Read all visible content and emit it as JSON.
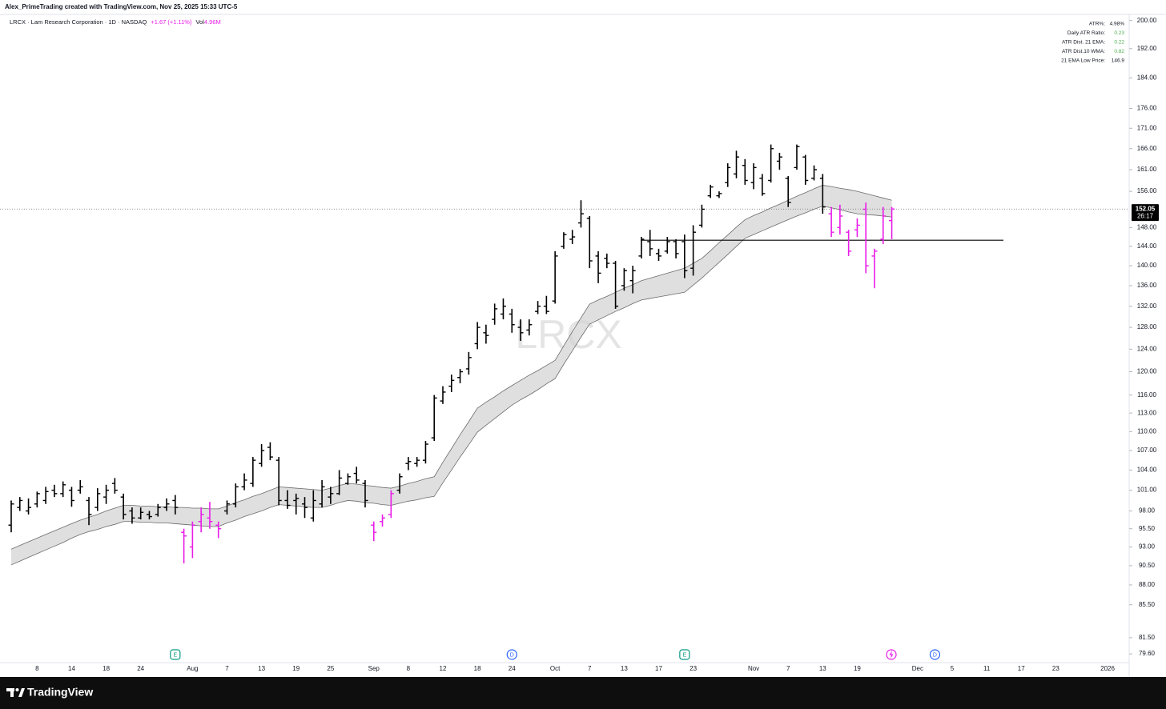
{
  "header": {
    "credit": "Alex_PrimeTrading created with TradingView.com, Nov 25, 2025 15:33 UTC-5"
  },
  "legend": {
    "symbol": "LRCX · Lam Research Corporation · 1D · NASDAQ",
    "change": "+1.67 (+1.11%)",
    "vol_label": "Vol",
    "vol_value": "4.96M"
  },
  "watermark": "LRCX",
  "stats_table": {
    "rows": [
      [
        "ATR%:",
        "4.98%"
      ],
      [
        "Daily ATR Ratio:",
        "0.23"
      ],
      [
        "ATR Dist. 21 EMA:",
        "0.22"
      ],
      [
        "ATR Dist.10 WMA:",
        "0.82"
      ],
      [
        "21 EMA Low Price:",
        "146.9"
      ]
    ]
  },
  "footer": {
    "brand": "TradingView"
  },
  "chart_data": {
    "type": "ohlc",
    "log_scale": true,
    "ylim": [
      78.6,
      201.8
    ],
    "yticks": [
      {
        "value": 200,
        "label": "200.00"
      },
      {
        "value": 192,
        "label": "192.00"
      },
      {
        "value": 184,
        "label": "184.00"
      },
      {
        "value": 176,
        "label": "176.00"
      },
      {
        "value": 171,
        "label": "171.00"
      },
      {
        "value": 166,
        "label": "166.00"
      },
      {
        "value": 161,
        "label": "161.00"
      },
      {
        "value": 156,
        "label": "156.00"
      },
      {
        "value": 148,
        "label": "148.00"
      },
      {
        "value": 144,
        "label": "144.00"
      },
      {
        "value": 140,
        "label": "140.00"
      },
      {
        "value": 136,
        "label": "136.00"
      },
      {
        "value": 132,
        "label": "132.00"
      },
      {
        "value": 128,
        "label": "128.00"
      },
      {
        "value": 124,
        "label": "124.00"
      },
      {
        "value": 120,
        "label": "120.00"
      },
      {
        "value": 116,
        "label": "116.00"
      },
      {
        "value": 113,
        "label": "113.00"
      },
      {
        "value": 110,
        "label": "110.00"
      },
      {
        "value": 107,
        "label": "107.00"
      },
      {
        "value": 104,
        "label": "104.00"
      },
      {
        "value": 101,
        "label": "101.00"
      },
      {
        "value": 98,
        "label": "98.00"
      },
      {
        "value": 95.5,
        "label": "95.50"
      },
      {
        "value": 93,
        "label": "93.00"
      },
      {
        "value": 90.5,
        "label": "90.50"
      },
      {
        "value": 88,
        "label": "88.00"
      },
      {
        "value": 85.5,
        "label": "85.50"
      },
      {
        "value": 81.5,
        "label": "81.50"
      },
      {
        "value": 79.6,
        "label": "79.60"
      }
    ],
    "categories": [
      null,
      null,
      null,
      "8",
      null,
      null,
      null,
      "14",
      null,
      null,
      null,
      "18",
      null,
      null,
      null,
      "24",
      null,
      null,
      null,
      null,
      null,
      "Aug",
      null,
      null,
      null,
      "7",
      null,
      null,
      null,
      "13",
      null,
      null,
      null,
      "19",
      null,
      null,
      null,
      "25",
      null,
      null,
      null,
      null,
      "Sep",
      null,
      null,
      null,
      "8",
      null,
      null,
      null,
      "12",
      null,
      null,
      null,
      "18",
      null,
      null,
      null,
      "24",
      null,
      null,
      null,
      null,
      "Oct",
      null,
      null,
      null,
      "7",
      null,
      null,
      null,
      "13",
      null,
      null,
      null,
      "17",
      null,
      null,
      null,
      "23",
      null,
      null,
      null,
      null,
      null,
      null,
      "Nov",
      null,
      null,
      null,
      "7",
      null,
      null,
      null,
      "13",
      null,
      null,
      null,
      "19",
      null,
      null,
      null,
      null,
      null,
      null,
      "Dec",
      null,
      null,
      null,
      "5",
      null,
      null,
      null,
      "11",
      null,
      null,
      null,
      "17",
      null,
      null,
      null,
      "23",
      null,
      null,
      null,
      null,
      null,
      "2026"
    ],
    "open": [
      96,
      98.5,
      98,
      99,
      99.5,
      101,
      100.5,
      101,
      101,
      99.5,
      98.5,
      100,
      102,
      100,
      98,
      97,
      97.5,
      97.5,
      98.5,
      99.5,
      95,
      93,
      96.5,
      97,
      96,
      98,
      99,
      101.5,
      102,
      105,
      107.5,
      105.5,
      99.5,
      99.5,
      99,
      97,
      99,
      100,
      100.5,
      102,
      103.5,
      102,
      96,
      96.5,
      97.5,
      101,
      105,
      105,
      105.5,
      109,
      115,
      117.5,
      119,
      120.5,
      125,
      127,
      129.5,
      130.5,
      130.5,
      128,
      127.5,
      131,
      132,
      133,
      144,
      145.5,
      149,
      150,
      142,
      141.5,
      140.5,
      136,
      137,
      142,
      145,
      142.5,
      143,
      145,
      145,
      139.5,
      148.5,
      155,
      155,
      158,
      160,
      162,
      158,
      159,
      158.5,
      163,
      159,
      161.5,
      164,
      159,
      159,
      151,
      148,
      147,
      147.5,
      152,
      142,
      145.5,
      149.5,
      null,
      null,
      null,
      null,
      null,
      null,
      null,
      null,
      null,
      null,
      null,
      null,
      null,
      null,
      null,
      null,
      null,
      null,
      null,
      null,
      null,
      null,
      null,
      null,
      null
    ],
    "high": [
      99.5,
      100,
      99.8,
      100.8,
      101.5,
      101.8,
      102.3,
      101.5,
      102.5,
      100,
      101.3,
      101.8,
      102.8,
      100.5,
      98.5,
      98.5,
      98,
      99,
      99.8,
      100.3,
      95.5,
      96.5,
      98.5,
      99.3,
      96.5,
      99.5,
      102,
      103.5,
      106,
      108,
      108.3,
      106,
      101,
      100.5,
      100,
      101,
      102.5,
      101.5,
      104,
      103.5,
      104.5,
      102.5,
      96.5,
      97.5,
      101,
      103.5,
      106,
      106,
      108.5,
      116,
      117.5,
      119.5,
      120.5,
      123.5,
      129,
      128.5,
      132.5,
      133.5,
      131.5,
      129.5,
      129.5,
      133,
      134,
      143,
      147,
      147.5,
      154,
      150.5,
      143,
      142.5,
      141,
      139.5,
      140,
      146,
      147.5,
      143.5,
      146,
      145.5,
      146.5,
      148.5,
      153,
      157.5,
      156,
      162.5,
      165.5,
      163.5,
      162.5,
      160,
      167,
      165,
      159.5,
      167,
      164.5,
      162,
      160,
      152.5,
      153,
      147.5,
      150,
      153.5,
      143.5,
      152.5,
      152.5,
      null,
      null,
      null,
      null,
      null,
      null,
      null,
      null,
      null,
      null,
      null,
      null,
      null,
      null,
      null,
      null,
      null,
      null,
      null,
      null,
      null,
      null,
      null,
      null,
      null
    ],
    "low": [
      95,
      98,
      97.5,
      98.5,
      99,
      100,
      100,
      98.6,
      100.5,
      96,
      98,
      99,
      100.5,
      96.8,
      96.2,
      96.8,
      96.8,
      97.2,
      98,
      97.5,
      90.8,
      91.5,
      95,
      95.5,
      94.2,
      97.5,
      98.5,
      101,
      101.5,
      104.5,
      105.5,
      98.8,
      98.3,
      97.5,
      97,
      96.5,
      98.5,
      99,
      100.3,
      101.8,
      102,
      98.5,
      93.8,
      95.8,
      97,
      100.5,
      104,
      104.5,
      105,
      108.5,
      114.5,
      116.5,
      118,
      119.5,
      124,
      125,
      128.5,
      129.5,
      127,
      125.5,
      126.5,
      130.5,
      130.5,
      132.5,
      143.5,
      144.5,
      148,
      139.5,
      136.5,
      139.5,
      131.5,
      135,
      134.5,
      141.5,
      142,
      141,
      142.5,
      141.5,
      137.5,
      138,
      148,
      154.5,
      154.5,
      157,
      159,
      157.5,
      156.5,
      155,
      158,
      161,
      152.5,
      161,
      157.5,
      158.5,
      151,
      146,
      146.5,
      142,
      146,
      138.5,
      135.5,
      144.5,
      145.5,
      null,
      null,
      null,
      null,
      null,
      null,
      null,
      null,
      null,
      null,
      null,
      null,
      null,
      null,
      null,
      null,
      null,
      null,
      null,
      null,
      null,
      null,
      null,
      null,
      null
    ],
    "close": [
      99,
      99.5,
      98.5,
      100.5,
      100.8,
      100.5,
      101.8,
      99.5,
      101.5,
      97.5,
      100.5,
      101,
      101,
      97.5,
      97,
      97.8,
      97.2,
      98.5,
      99,
      98.5,
      94.5,
      96,
      97.5,
      96.5,
      95.5,
      99,
      101.5,
      102.5,
      105.5,
      107,
      106,
      99.5,
      98.8,
      99.8,
      98.5,
      99.5,
      101.5,
      100.5,
      102.8,
      103,
      102.5,
      99.5,
      95,
      97,
      100.5,
      103,
      105.3,
      105.5,
      108,
      115.5,
      116.5,
      118.5,
      120,
      122.5,
      128,
      126.5,
      131.5,
      132,
      128.5,
      127,
      128.5,
      132,
      131,
      142,
      146.5,
      146,
      151,
      141,
      138.5,
      140.5,
      132,
      139,
      139,
      145.5,
      143.5,
      142,
      145,
      142.5,
      139,
      147,
      152,
      157,
      155.5,
      161.5,
      164,
      158.5,
      161.5,
      155.5,
      166,
      164,
      153.5,
      166.5,
      158.5,
      161,
      152.5,
      147,
      150.5,
      143,
      148.5,
      140,
      143,
      150.5,
      152.05,
      null,
      null,
      null,
      null,
      null,
      null,
      null,
      null,
      null,
      null,
      null,
      null,
      null,
      null,
      null,
      null,
      null,
      null,
      null,
      null,
      null,
      null,
      null,
      null,
      null
    ],
    "bar_colors": [
      "#000000",
      "#000000",
      "#000000",
      "#000000",
      "#000000",
      "#000000",
      "#000000",
      "#000000",
      "#000000",
      "#000000",
      "#000000",
      "#000000",
      "#000000",
      "#000000",
      "#000000",
      "#000000",
      "#000000",
      "#000000",
      "#000000",
      "#000000",
      "#e81ce8",
      "#e81ce8",
      "#e81ce8",
      "#e81ce8",
      "#e81ce8",
      "#000000",
      "#000000",
      "#000000",
      "#000000",
      "#000000",
      "#000000",
      "#000000",
      "#000000",
      "#000000",
      "#000000",
      "#000000",
      "#000000",
      "#000000",
      "#000000",
      "#000000",
      "#000000",
      "#000000",
      "#e81ce8",
      "#e81ce8",
      "#e81ce8",
      "#000000",
      "#000000",
      "#000000",
      "#000000",
      "#000000",
      "#000000",
      "#000000",
      "#000000",
      "#000000",
      "#000000",
      "#000000",
      "#000000",
      "#000000",
      "#000000",
      "#000000",
      "#000000",
      "#000000",
      "#000000",
      "#000000",
      "#000000",
      "#000000",
      "#000000",
      "#000000",
      "#000000",
      "#000000",
      "#000000",
      "#000000",
      "#000000",
      "#000000",
      "#000000",
      "#000000",
      "#000000",
      "#000000",
      "#000000",
      "#000000",
      "#000000",
      "#000000",
      "#000000",
      "#000000",
      "#000000",
      "#000000",
      "#000000",
      "#000000",
      "#000000",
      "#000000",
      "#000000",
      "#000000",
      "#000000",
      "#000000",
      "#000000",
      "#e81ce8",
      "#e81ce8",
      "#e81ce8",
      "#e81ce8",
      "#e81ce8",
      "#e81ce8",
      "#e81ce8",
      "#e81ce8",
      null,
      null,
      null,
      null,
      null,
      null,
      null,
      null,
      null,
      null,
      null,
      null,
      null,
      null,
      null,
      null,
      null,
      null,
      null,
      null,
      null,
      null,
      null,
      null,
      null
    ],
    "band_upper": [
      92.7,
      93.2,
      93.7,
      94.2,
      94.7,
      95.2,
      95.7,
      96.2,
      96.7,
      97.1,
      97.5,
      98.0,
      98.4,
      98.8,
      98.8,
      98.7,
      98.7,
      98.6,
      98.6,
      98.5,
      98.5,
      98.4,
      98.4,
      98.3,
      98.3,
      98.7,
      99.2,
      99.6,
      100.1,
      100.5,
      101.0,
      101.5,
      101.4,
      101.3,
      101.2,
      101.1,
      101.0,
      101.3,
      101.7,
      102.0,
      101.9,
      101.7,
      101.6,
      101.4,
      101.3,
      101.6,
      102.0,
      102.3,
      102.7,
      103.0,
      105.2,
      107.3,
      109.5,
      111.6,
      113.8,
      114.8,
      115.7,
      116.7,
      117.6,
      118.5,
      119.4,
      120.2,
      121.1,
      122.0,
      124.6,
      127.2,
      129.8,
      132.4,
      133.2,
      133.9,
      134.7,
      135.5,
      136.2,
      137.0,
      137.5,
      138.0,
      138.5,
      139.0,
      139.5,
      140.5,
      141.5,
      143.1,
      144.8,
      146.4,
      148.1,
      149.7,
      150.6,
      151.4,
      152.3,
      153.1,
      154.0,
      154.9,
      155.7,
      156.6,
      157.4,
      157.1,
      156.7,
      156.4,
      156.0,
      155.5,
      155.0,
      154.5,
      154.0,
      null,
      null,
      null,
      null,
      null,
      null,
      null,
      null,
      null,
      null,
      null,
      null,
      null,
      null,
      null,
      null,
      null,
      null,
      null,
      null,
      null,
      null,
      null,
      null,
      null
    ],
    "band_lower": [
      90.6,
      91.1,
      91.6,
      92.1,
      92.6,
      93.1,
      93.6,
      94.2,
      94.7,
      95.1,
      95.4,
      95.8,
      96.1,
      96.5,
      96.5,
      96.4,
      96.4,
      96.3,
      96.3,
      96.2,
      96.1,
      96.0,
      95.9,
      95.8,
      95.8,
      96.3,
      96.7,
      97.2,
      97.6,
      98.0,
      98.5,
      98.9,
      98.8,
      98.7,
      98.6,
      98.5,
      98.5,
      98.8,
      99.2,
      99.5,
      99.4,
      99.2,
      99.1,
      98.9,
      98.8,
      99.1,
      99.4,
      99.6,
      99.9,
      100.1,
      102.1,
      104.0,
      106.0,
      107.9,
      109.9,
      111.0,
      112.1,
      113.2,
      114.3,
      115.2,
      116.0,
      116.9,
      117.9,
      118.8,
      121.3,
      123.7,
      126.2,
      128.6,
      129.4,
      130.2,
      131.0,
      131.7,
      132.5,
      133.2,
      133.5,
      133.8,
      134.1,
      134.4,
      134.7,
      136.1,
      137.5,
      139.1,
      140.7,
      142.3,
      144.0,
      145.7,
      146.5,
      147.3,
      148.1,
      148.9,
      149.7,
      150.5,
      151.2,
      152.0,
      152.7,
      152.3,
      151.9,
      151.4,
      151.0,
      150.8,
      150.7,
      150.5,
      150.3,
      null,
      null,
      null,
      null,
      null,
      null,
      null,
      null,
      null,
      null,
      null,
      null,
      null,
      null,
      null,
      null,
      null,
      null,
      null,
      null,
      null,
      null,
      null,
      null,
      null
    ],
    "band_color": "#d4d4d4",
    "band_line_color": "#6b6b6b",
    "hline": 145.3,
    "last_price": 152.05,
    "countdown": "26:17",
    "events": [
      "E",
      "D",
      "E",
      "D"
    ]
  }
}
